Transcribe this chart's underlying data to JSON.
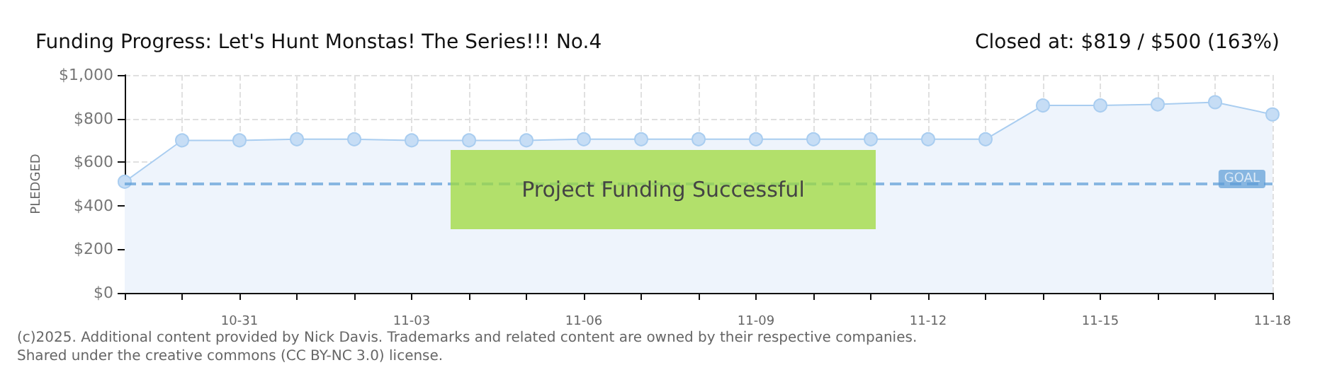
{
  "chart_data": {
    "type": "area",
    "title": "Funding Progress: Let's Hunt Monstas! The Series!!! No.4",
    "subtitle": "Closed at: $819 / $500 (163%)",
    "ylabel": "PLEDGED",
    "categories": [
      null,
      null,
      "10-31",
      null,
      null,
      "11-03",
      null,
      null,
      "11-06",
      null,
      null,
      "11-09",
      null,
      null,
      "11-12",
      null,
      null,
      "11-15",
      null,
      null,
      "11-18"
    ],
    "series": [
      {
        "color": "#a9cdf0",
        "values": [
          510,
          700,
          700,
          705,
          705,
          700,
          700,
          700,
          705,
          705,
          705,
          705,
          705,
          705,
          705,
          705,
          860,
          860,
          865,
          875,
          819
        ]
      }
    ],
    "ylim": [
      0,
      1000
    ],
    "yticks": [
      {
        "value": 0,
        "label": "$0"
      },
      {
        "value": 200,
        "label": "$200"
      },
      {
        "value": 400,
        "label": "$400"
      },
      {
        "value": 600,
        "label": "$600"
      },
      {
        "value": 800,
        "label": "$800"
      },
      {
        "value": 1000,
        "label": "$1,000"
      }
    ],
    "ref_lines": [
      {
        "axis": "y",
        "value": 500,
        "label": "GOAL",
        "color": "#5b9bd5",
        "line_style": "dashed"
      }
    ],
    "grid": true,
    "marker": "circle",
    "annotations": [
      "Project Funding Successful",
      "(c)2025. Additional content provided by Nick Davis. Trademarks and related content are owned by their respective companies.",
      "Shared under the creative commons (CC BY-NC 3.0) license."
    ]
  }
}
